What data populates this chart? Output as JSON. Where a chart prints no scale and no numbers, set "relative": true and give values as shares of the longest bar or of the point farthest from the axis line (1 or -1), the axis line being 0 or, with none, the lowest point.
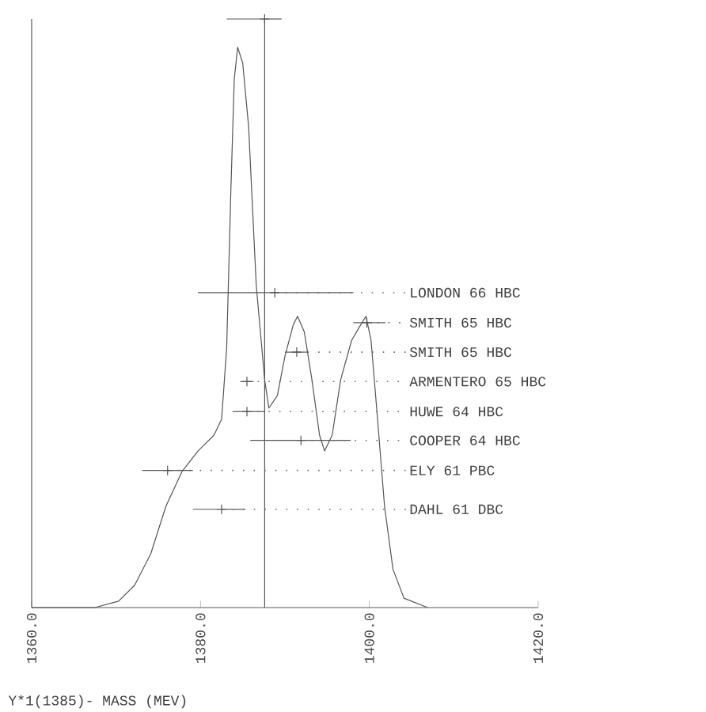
{
  "chart_data": {
    "type": "line",
    "relative": true,
    "xlabel": "Y*1(1385)- MASS (MEV)",
    "xlim": [
      1360,
      1420
    ],
    "xticks": [
      {
        "value": 1360,
        "label": "1360.0"
      },
      {
        "value": 1380,
        "label": "1380.0"
      },
      {
        "value": 1400,
        "label": "1400.0"
      },
      {
        "value": 1420,
        "label": "1420.0"
      }
    ],
    "grid": false,
    "series": [
      {
        "color": "#555555",
        "x": [
          1360,
          1367.5,
          1370.3,
          1372.2,
          1374.1,
          1375.9,
          1377.8,
          1379.7,
          1381.6,
          1382.5,
          1383.1,
          1383.6,
          1384.0,
          1384.4,
          1385.0,
          1385.7,
          1386.6,
          1387.6,
          1388.1,
          1389.1,
          1390.0,
          1391.0,
          1391.5,
          1392.3,
          1393.2,
          1394.1,
          1394.7,
          1395.6,
          1396.6,
          1397.9,
          1399.0,
          1399.6,
          1400.2,
          1400.9,
          1401.8,
          1402.8,
          1404.1,
          1406.9
        ],
        "values": [
          0,
          0,
          0.011,
          0.038,
          0.091,
          0.172,
          0.231,
          0.266,
          0.293,
          0.32,
          0.441,
          0.71,
          0.898,
          0.952,
          0.925,
          0.817,
          0.548,
          0.387,
          0.339,
          0.36,
          0.427,
          0.481,
          0.495,
          0.468,
          0.387,
          0.293,
          0.266,
          0.293,
          0.387,
          0.454,
          0.481,
          0.495,
          0.454,
          0.333,
          0.172,
          0.065,
          0.016,
          0
        ]
      },
      {
        "type": "scatter",
        "color": "#555555",
        "marker": "cross",
        "x": [
          1388.8,
          1399.7,
          1391.4,
          1385.5,
          1385.5,
          1391.9,
          1376.1,
          1382.5
        ],
        "values": [
          0.535,
          0.484,
          0.434,
          0.384,
          0.333,
          0.284,
          0.233,
          0.167
        ],
        "xerrors": [
          [
            1379.7,
            1398.1
          ],
          [
            1398.1,
            1401.9
          ],
          [
            1390.0,
            1392.8
          ],
          [
            1384.7,
            1386.3
          ],
          [
            1383.8,
            1387.6
          ],
          [
            1385.9,
            1397.8
          ],
          [
            1373.1,
            1379.1
          ],
          [
            1379.1,
            1385.3
          ]
        ]
      },
      {
        "type": "scatter",
        "color": "#555555",
        "marker": "cross",
        "x": [
          1387.6
        ],
        "values": [
          1
        ],
        "xerrors": [
          [
            1383.1,
            1389.6
          ]
        ]
      }
    ],
    "ref_lines": [
      {
        "axis": "x",
        "value": 1387.6,
        "color": "#555555"
      }
    ],
    "annotations": [
      "LONDON 66 HBC",
      "SMITH 65 HBC",
      "SMITH 65 HBC",
      "ARMENTERO 65 HBC",
      "HUWE 64 HBC",
      "COOPER 64 HBC",
      "ELY 61 PBC",
      "DAHL 61 DBC"
    ]
  }
}
